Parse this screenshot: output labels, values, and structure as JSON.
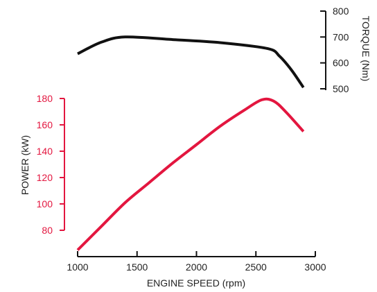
{
  "chart_data": {
    "type": "line",
    "x": {
      "label": "ENGINE SPEED (rpm)",
      "range": [
        1000,
        3000
      ],
      "ticks": [
        1000,
        1500,
        2000,
        2500,
        3000
      ],
      "tick_labels": [
        "1000",
        "1500",
        "2000",
        "2500",
        "3000"
      ]
    },
    "y_power": {
      "label": "POWER (kW)",
      "range": [
        70,
        180
      ],
      "ticks": [
        80,
        100,
        120,
        140,
        160,
        180
      ],
      "tick_labels": [
        "80",
        "100",
        "120",
        "140",
        "160",
        "180"
      ],
      "color": "#e3163f"
    },
    "y_torque": {
      "label": "TORQUE (Nm)",
      "range": [
        500,
        800
      ],
      "ticks": [
        500,
        600,
        700,
        800
      ],
      "tick_labels": [
        "500",
        "600",
        "700",
        "800"
      ],
      "color": "#111111"
    },
    "series": [
      {
        "axis": "torque",
        "color": "#111111",
        "points": [
          [
            1000,
            635
          ],
          [
            1200,
            680
          ],
          [
            1400,
            700
          ],
          [
            1800,
            690
          ],
          [
            2200,
            678
          ],
          [
            2600,
            655
          ],
          [
            2700,
            625
          ],
          [
            2800,
            572
          ],
          [
            2900,
            505
          ]
        ]
      },
      {
        "axis": "power",
        "color": "#e3163f",
        "points": [
          [
            1000,
            65
          ],
          [
            1200,
            83
          ],
          [
            1400,
            101
          ],
          [
            1600,
            116
          ],
          [
            1800,
            131
          ],
          [
            2000,
            145
          ],
          [
            2200,
            159
          ],
          [
            2400,
            171
          ],
          [
            2550,
            179
          ],
          [
            2650,
            178
          ],
          [
            2750,
            170
          ],
          [
            2900,
            155
          ]
        ]
      }
    ]
  }
}
